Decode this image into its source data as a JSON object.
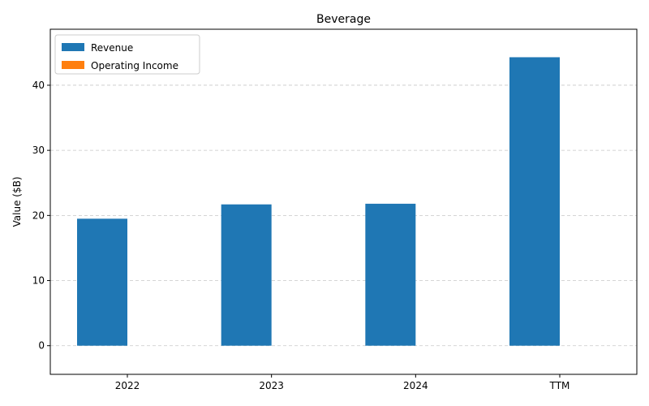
{
  "chart_data": {
    "type": "bar",
    "title": "Beverage",
    "xlabel": "",
    "ylabel": "Value ($B)",
    "categories": [
      "2022",
      "2023",
      "2024",
      "TTM"
    ],
    "series": [
      {
        "name": "Revenue",
        "color": "#1f77b4",
        "values": [
          19.5,
          21.7,
          21.8,
          44.3
        ]
      },
      {
        "name": "Operating Income",
        "color": "#ff7f0e",
        "values": [
          0,
          0,
          0,
          0
        ]
      }
    ],
    "ylim": [
      -4.4,
      48.6
    ],
    "yticks": [
      0,
      10,
      20,
      30,
      40
    ],
    "grid": "y-dashed",
    "legend_position": "top-left"
  }
}
